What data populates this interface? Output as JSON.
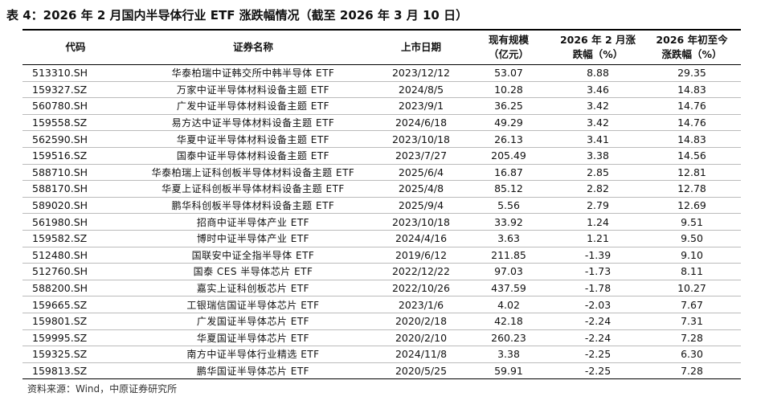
{
  "header": {
    "title": "表 4：2026 年 2 月国内半导体行业 ETF 涨跌幅情况（截至 2026 年 3 月 10 日）"
  },
  "table": {
    "columns": [
      [
        "代码"
      ],
      [
        "证券名称"
      ],
      [
        "上市日期"
      ],
      [
        "现有规模",
        "（亿元）"
      ],
      [
        "2026 年 2 月涨",
        "跌幅（%）"
      ],
      [
        "2026 年初至今",
        "涨跌幅（%）"
      ]
    ],
    "rows": [
      [
        "513310.SH",
        "华泰柏瑞中证韩交所中韩半导体 ETF",
        "2023/12/12",
        "53.07",
        "8.88",
        "29.35"
      ],
      [
        "159327.SZ",
        "万家中证半导体材料设备主题 ETF",
        "2024/8/5",
        "10.28",
        "3.46",
        "14.83"
      ],
      [
        "560780.SH",
        "广发中证半导体材料设备主题 ETF",
        "2023/9/1",
        "36.25",
        "3.42",
        "14.76"
      ],
      [
        "159558.SZ",
        "易方达中证半导体材料设备主题 ETF",
        "2024/6/18",
        "49.29",
        "3.42",
        "14.76"
      ],
      [
        "562590.SH",
        "华夏中证半导体材料设备主题 ETF",
        "2023/10/18",
        "26.13",
        "3.41",
        "14.83"
      ],
      [
        "159516.SZ",
        "国泰中证半导体材料设备主题 ETF",
        "2023/7/27",
        "205.49",
        "3.38",
        "14.56"
      ],
      [
        "588710.SH",
        "华泰柏瑞上证科创板半导体材料设备主题 ETF",
        "2025/6/4",
        "16.87",
        "2.85",
        "12.81"
      ],
      [
        "588170.SH",
        "华夏上证科创板半导体材料设备主题 ETF",
        "2025/4/8",
        "85.12",
        "2.82",
        "12.78"
      ],
      [
        "589020.SH",
        "鹏华科创板半导体材料设备主题 ETF",
        "2025/9/4",
        "5.56",
        "2.79",
        "12.69"
      ],
      [
        "561980.SH",
        "招商中证半导体产业 ETF",
        "2023/10/18",
        "33.92",
        "1.24",
        "9.51"
      ],
      [
        "159582.SZ",
        "博时中证半导体产业 ETF",
        "2024/4/16",
        "3.63",
        "1.21",
        "9.50"
      ],
      [
        "512480.SH",
        "国联安中证全指半导体 ETF",
        "2019/6/12",
        "211.85",
        "-1.39",
        "9.10"
      ],
      [
        "512760.SH",
        "国泰 CES 半导体芯片 ETF",
        "2022/12/22",
        "97.03",
        "-1.73",
        "8.11"
      ],
      [
        "588200.SH",
        "嘉实上证科创板芯片 ETF",
        "2022/10/26",
        "437.59",
        "-1.78",
        "10.27"
      ],
      [
        "159665.SZ",
        "工银瑞信国证半导体芯片 ETF",
        "2023/1/6",
        "4.02",
        "-2.03",
        "7.67"
      ],
      [
        "159801.SZ",
        "广发国证半导体芯片 ETF",
        "2020/2/18",
        "42.18",
        "-2.24",
        "7.31"
      ],
      [
        "159995.SZ",
        "华夏国证半导体芯片 ETF",
        "2020/2/10",
        "260.23",
        "-2.24",
        "7.28"
      ],
      [
        "159325.SZ",
        "南方中证半导体行业精选 ETF",
        "2024/11/8",
        "3.38",
        "-2.25",
        "6.30"
      ],
      [
        "159813.SZ",
        "鹏华国证半导体芯片 ETF",
        "2020/5/25",
        "59.91",
        "-2.25",
        "7.28"
      ]
    ]
  },
  "footer": {
    "source": "资料来源：Wind，中原证券研究所"
  }
}
